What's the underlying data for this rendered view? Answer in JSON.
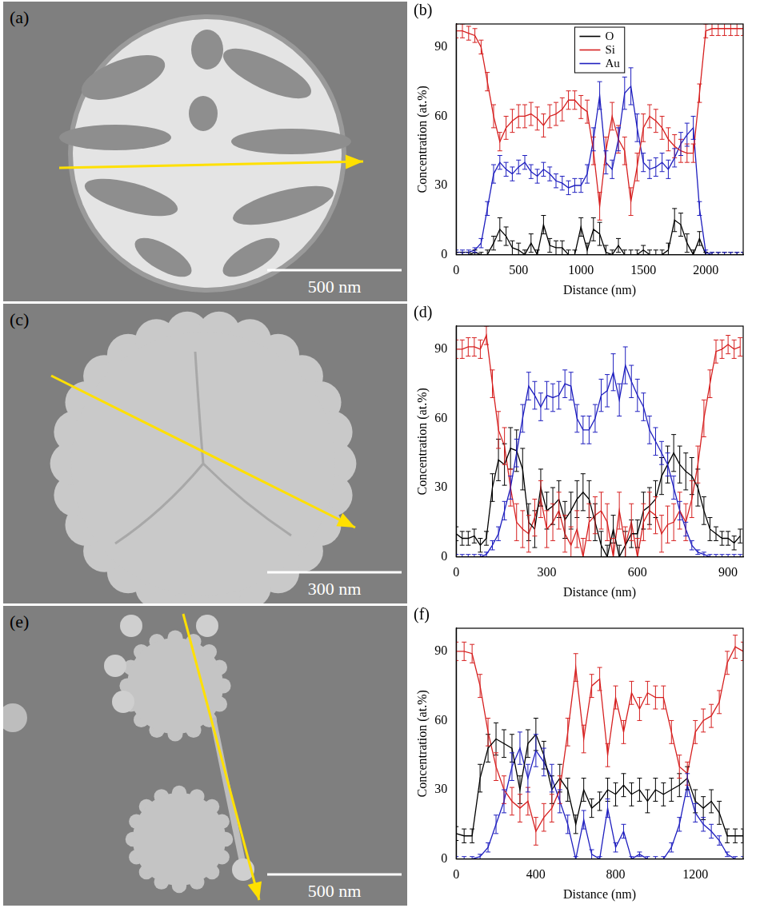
{
  "images": [
    {
      "label": "(a)",
      "scale_bar": "500 nm"
    },
    {
      "label": "(c)",
      "scale_bar": "300 nm"
    },
    {
      "label": "(e)",
      "scale_bar": "500 nm"
    }
  ],
  "chart_data": [
    {
      "type": "line",
      "title": "(b)",
      "x_label": "Distance (nm)",
      "y_label": "Concentration (at.%)",
      "x": [
        0,
        50,
        100,
        150,
        200,
        250,
        300,
        350,
        400,
        450,
        500,
        550,
        600,
        650,
        700,
        750,
        800,
        850,
        900,
        950,
        1000,
        1050,
        1100,
        1150,
        1200,
        1250,
        1300,
        1350,
        1400,
        1450,
        1500,
        1550,
        1600,
        1650,
        1700,
        1750,
        1800,
        1850,
        1900,
        1950,
        2000,
        2050,
        2100,
        2150,
        2200,
        2250,
        2300
      ],
      "series": [
        {
          "name": "O",
          "color": "#000000",
          "values": [
            0,
            0,
            0,
            1,
            0,
            0,
            5,
            11,
            8,
            3,
            2,
            0,
            5,
            0,
            13,
            4,
            3,
            3,
            0,
            0,
            12,
            2,
            11,
            9,
            1,
            0,
            4,
            0,
            0,
            0,
            2,
            0,
            0,
            0,
            2,
            15,
            13,
            5,
            0,
            7,
            0,
            0,
            0,
            0,
            0,
            0,
            0
          ],
          "errors": [
            1,
            1,
            1,
            1,
            1,
            2,
            3,
            5,
            4,
            3,
            3,
            2,
            4,
            2,
            4,
            3,
            3,
            3,
            2,
            2,
            4,
            3,
            5,
            5,
            3,
            2,
            3,
            2,
            2,
            2,
            2,
            2,
            2,
            2,
            3,
            5,
            5,
            4,
            2,
            3,
            1,
            1,
            1,
            1,
            1,
            1,
            1
          ]
        },
        {
          "name": "Si",
          "color": "#d62020",
          "values": [
            97,
            97,
            96,
            95,
            90,
            75,
            60,
            49,
            55,
            58,
            60,
            60,
            61,
            59,
            56,
            60,
            61,
            63,
            67,
            67,
            64,
            62,
            45,
            21,
            45,
            60,
            50,
            45,
            23,
            38,
            55,
            60,
            58,
            55,
            50,
            47,
            45,
            44,
            44,
            70,
            97,
            98,
            98,
            98,
            98,
            98,
            98
          ],
          "errors": [
            3,
            3,
            3,
            3,
            3,
            4,
            5,
            4,
            5,
            5,
            5,
            5,
            5,
            5,
            5,
            5,
            5,
            5,
            4,
            4,
            5,
            5,
            6,
            6,
            6,
            6,
            6,
            6,
            6,
            6,
            6,
            5,
            5,
            5,
            5,
            5,
            5,
            4,
            4,
            4,
            3,
            3,
            3,
            3,
            3,
            3,
            3
          ]
        },
        {
          "name": "Au",
          "color": "#1f1fbf",
          "values": [
            1,
            1,
            1,
            2,
            5,
            20,
            35,
            40,
            37,
            35,
            38,
            40,
            36,
            34,
            37,
            35,
            32,
            31,
            29,
            30,
            30,
            35,
            50,
            69,
            40,
            37,
            50,
            70,
            73,
            55,
            40,
            37,
            38,
            40,
            37,
            42,
            48,
            52,
            55,
            20,
            1,
            0,
            0,
            0,
            0,
            0,
            0
          ],
          "errors": [
            1,
            1,
            1,
            1,
            2,
            3,
            4,
            3,
            3,
            3,
            3,
            3,
            3,
            3,
            3,
            3,
            3,
            3,
            3,
            3,
            3,
            4,
            5,
            6,
            5,
            4,
            5,
            7,
            8,
            6,
            4,
            4,
            4,
            4,
            4,
            4,
            5,
            5,
            5,
            3,
            1,
            1,
            1,
            1,
            1,
            1,
            1
          ]
        }
      ],
      "xlim": [
        0,
        2300
      ],
      "xticks": [
        0,
        500,
        1000,
        1500,
        2000
      ],
      "ylim": [
        0,
        100
      ],
      "yticks": [
        0,
        30,
        60,
        90
      ],
      "grid": false,
      "legend": "top"
    },
    {
      "type": "line",
      "title": "(d)",
      "x_label": "Distance (nm)",
      "y_label": "Concentration (at.%)",
      "x": [
        0,
        20,
        40,
        60,
        80,
        100,
        120,
        140,
        160,
        180,
        200,
        220,
        240,
        260,
        280,
        300,
        320,
        340,
        360,
        380,
        400,
        420,
        440,
        460,
        480,
        500,
        520,
        540,
        560,
        580,
        600,
        620,
        640,
        660,
        680,
        700,
        720,
        740,
        760,
        780,
        800,
        820,
        840,
        860,
        880,
        900,
        920,
        940
      ],
      "series": [
        {
          "name": "O",
          "color": "#000000",
          "values": [
            10,
            8,
            8,
            9,
            5,
            8,
            30,
            42,
            40,
            47,
            46,
            38,
            15,
            12,
            30,
            20,
            22,
            25,
            16,
            20,
            25,
            28,
            25,
            15,
            5,
            0,
            12,
            0,
            5,
            10,
            10,
            20,
            22,
            25,
            35,
            40,
            45,
            40,
            37,
            35,
            30,
            20,
            12,
            10,
            8,
            8,
            6,
            9
          ],
          "errors": [
            3,
            3,
            3,
            3,
            3,
            3,
            6,
            9,
            9,
            9,
            9,
            9,
            8,
            8,
            8,
            8,
            8,
            8,
            8,
            8,
            8,
            8,
            8,
            8,
            6,
            5,
            6,
            5,
            6,
            6,
            6,
            8,
            8,
            8,
            8,
            8,
            8,
            8,
            8,
            8,
            8,
            6,
            5,
            3,
            3,
            3,
            3,
            3
          ]
        },
        {
          "name": "Si",
          "color": "#d62020",
          "values": [
            90,
            90,
            91,
            91,
            90,
            96,
            75,
            55,
            48,
            30,
            15,
            12,
            10,
            17,
            25,
            12,
            15,
            20,
            10,
            5,
            12,
            0,
            15,
            18,
            20,
            15,
            0,
            20,
            5,
            15,
            0,
            15,
            20,
            18,
            10,
            14,
            15,
            20,
            15,
            25,
            40,
            60,
            75,
            89,
            90,
            92,
            90,
            91
          ],
          "errors": [
            4,
            4,
            4,
            4,
            4,
            4,
            6,
            8,
            8,
            8,
            8,
            8,
            8,
            8,
            8,
            8,
            8,
            8,
            8,
            8,
            8,
            8,
            8,
            8,
            8,
            8,
            8,
            8,
            8,
            8,
            8,
            8,
            8,
            8,
            8,
            8,
            8,
            8,
            8,
            8,
            8,
            8,
            6,
            5,
            4,
            4,
            4,
            4
          ]
        },
        {
          "name": "Au",
          "color": "#1f1fbf",
          "values": [
            0,
            0,
            0,
            0,
            0,
            1,
            5,
            10,
            20,
            30,
            45,
            60,
            74,
            70,
            65,
            70,
            69,
            70,
            75,
            74,
            60,
            55,
            55,
            60,
            70,
            72,
            80,
            68,
            83,
            76,
            70,
            65,
            55,
            50,
            45,
            40,
            30,
            20,
            12,
            5,
            2,
            1,
            0,
            0,
            0,
            0,
            0,
            0
          ],
          "errors": [
            1,
            1,
            1,
            1,
            1,
            1,
            2,
            3,
            4,
            5,
            6,
            6,
            6,
            6,
            6,
            6,
            6,
            6,
            6,
            6,
            6,
            6,
            6,
            6,
            7,
            7,
            8,
            7,
            8,
            7,
            7,
            6,
            6,
            6,
            5,
            5,
            5,
            4,
            3,
            2,
            1,
            1,
            1,
            1,
            1,
            1,
            1,
            1
          ]
        }
      ],
      "xlim": [
        0,
        950
      ],
      "xticks": [
        0,
        300,
        600,
        900
      ],
      "ylim": [
        0,
        100
      ],
      "yticks": [
        0,
        30,
        60,
        90
      ],
      "grid": false
    },
    {
      "type": "line",
      "title": "(f)",
      "x_label": "Distance (nm)",
      "y_label": "Concentration (at.%)",
      "x": [
        0,
        40,
        80,
        120,
        160,
        200,
        240,
        280,
        320,
        360,
        400,
        440,
        480,
        520,
        560,
        600,
        640,
        680,
        720,
        760,
        800,
        840,
        880,
        920,
        960,
        1000,
        1040,
        1080,
        1120,
        1160,
        1200,
        1240,
        1280,
        1320,
        1360,
        1400,
        1440
      ],
      "series": [
        {
          "name": "O",
          "color": "#000000",
          "values": [
            11,
            10,
            10,
            35,
            48,
            52,
            50,
            48,
            30,
            50,
            54,
            45,
            30,
            35,
            30,
            15,
            30,
            22,
            25,
            30,
            28,
            32,
            28,
            30,
            25,
            30,
            28,
            30,
            32,
            35,
            25,
            22,
            25,
            20,
            10,
            10,
            10
          ],
          "errors": [
            3,
            3,
            3,
            6,
            6,
            7,
            6,
            6,
            6,
            6,
            7,
            6,
            6,
            6,
            5,
            4,
            5,
            4,
            4,
            5,
            5,
            5,
            5,
            5,
            5,
            5,
            5,
            5,
            5,
            5,
            5,
            5,
            5,
            5,
            3,
            3,
            3
          ]
        },
        {
          "name": "Si",
          "color": "#d62020",
          "values": [
            90,
            90,
            89,
            75,
            55,
            40,
            30,
            25,
            22,
            25,
            12,
            18,
            22,
            30,
            55,
            83,
            52,
            75,
            78,
            45,
            70,
            55,
            72,
            65,
            72,
            70,
            70,
            55,
            40,
            37,
            55,
            60,
            62,
            68,
            85,
            92,
            90
          ],
          "errors": [
            4,
            4,
            4,
            5,
            6,
            6,
            6,
            6,
            6,
            6,
            6,
            6,
            6,
            6,
            6,
            6,
            6,
            5,
            5,
            5,
            5,
            5,
            5,
            5,
            5,
            5,
            5,
            5,
            5,
            5,
            5,
            5,
            5,
            5,
            5,
            5,
            4
          ]
        },
        {
          "name": "Au",
          "color": "#1f1fbf",
          "values": [
            0,
            0,
            0,
            1,
            5,
            15,
            25,
            40,
            48,
            35,
            47,
            42,
            35,
            25,
            15,
            0,
            17,
            2,
            0,
            22,
            5,
            12,
            0,
            2,
            0,
            0,
            0,
            5,
            15,
            32,
            20,
            15,
            12,
            8,
            2,
            0,
            0
          ],
          "errors": [
            1,
            1,
            1,
            1,
            2,
            4,
            5,
            6,
            7,
            6,
            7,
            6,
            6,
            5,
            4,
            1,
            4,
            2,
            1,
            4,
            2,
            3,
            1,
            1,
            1,
            1,
            1,
            2,
            3,
            5,
            4,
            3,
            3,
            2,
            1,
            1,
            1
          ]
        }
      ],
      "xlim": [
        0,
        1440
      ],
      "xticks": [
        0,
        400,
        800,
        1200
      ],
      "ylim": [
        0,
        100
      ],
      "yticks": [
        0,
        30,
        60,
        90
      ],
      "grid": false
    }
  ]
}
